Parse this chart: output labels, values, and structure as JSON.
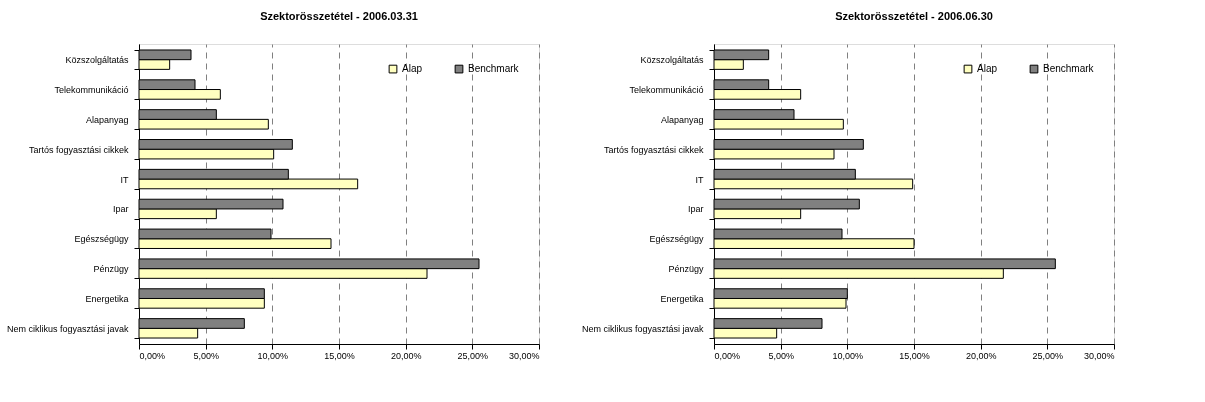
{
  "chart_data": [
    {
      "type": "bar",
      "orientation": "horizontal",
      "title": "Szektorösszetétel - 2006.03.31",
      "categories": [
        "Közszolgáltatás",
        "Telekommunikáció",
        "Alapanyag",
        "Tartós fogyasztási cikkek",
        "IT",
        "Ipar",
        "Egészségügy",
        "Pénzügy",
        "Energetika",
        "Nem ciklikus fogyasztási javak"
      ],
      "series": [
        {
          "name": "Alap",
          "color": "#ffffc0",
          "values": [
            2.3,
            6.1,
            9.7,
            10.1,
            16.4,
            5.8,
            14.4,
            21.6,
            9.4,
            4.4
          ]
        },
        {
          "name": "Benchmark",
          "color": "#808080",
          "values": [
            3.9,
            4.2,
            5.8,
            11.5,
            11.2,
            10.8,
            9.9,
            25.5,
            9.4,
            7.9
          ]
        }
      ],
      "xlim": [
        0,
        30
      ],
      "xticks": [
        {
          "value": 0,
          "label": "0,00%"
        },
        {
          "value": 5,
          "label": "5,00%"
        },
        {
          "value": 10,
          "label": "10,00%"
        },
        {
          "value": 15,
          "label": "15,00%"
        },
        {
          "value": 20,
          "label": "20,00%"
        },
        {
          "value": 25,
          "label": "25,00%"
        },
        {
          "value": 30,
          "label": "30,00%"
        }
      ],
      "grid": "x",
      "legend": "top right"
    },
    {
      "type": "bar",
      "orientation": "horizontal",
      "title": "Szektorösszetétel - 2006.06.30",
      "categories": [
        "Közszolgáltatás",
        "Telekommunikáció",
        "Alapanyag",
        "Tartós fogyasztási cikkek",
        "IT",
        "Ipar",
        "Egészségügy",
        "Pénzügy",
        "Energetika",
        "Nem ciklikus fogyasztási javak"
      ],
      "series": [
        {
          "name": "Alap",
          "color": "#ffffc0",
          "values": [
            2.2,
            6.5,
            9.7,
            9.0,
            14.9,
            6.5,
            15.0,
            21.7,
            9.9,
            4.7
          ]
        },
        {
          "name": "Benchmark",
          "color": "#808080",
          "values": [
            4.1,
            4.1,
            6.0,
            11.2,
            10.6,
            10.9,
            9.6,
            25.6,
            10.0,
            8.1
          ]
        }
      ],
      "xlim": [
        0,
        30
      ],
      "xticks": [
        {
          "value": 0,
          "label": "0,00%"
        },
        {
          "value": 5,
          "label": "5,00%"
        },
        {
          "value": 10,
          "label": "10,00%"
        },
        {
          "value": 15,
          "label": "15,00%"
        },
        {
          "value": 20,
          "label": "20,00%"
        },
        {
          "value": 25,
          "label": "25,00%"
        },
        {
          "value": 30,
          "label": "30,00%"
        }
      ],
      "grid": "x",
      "legend": "top right"
    }
  ]
}
